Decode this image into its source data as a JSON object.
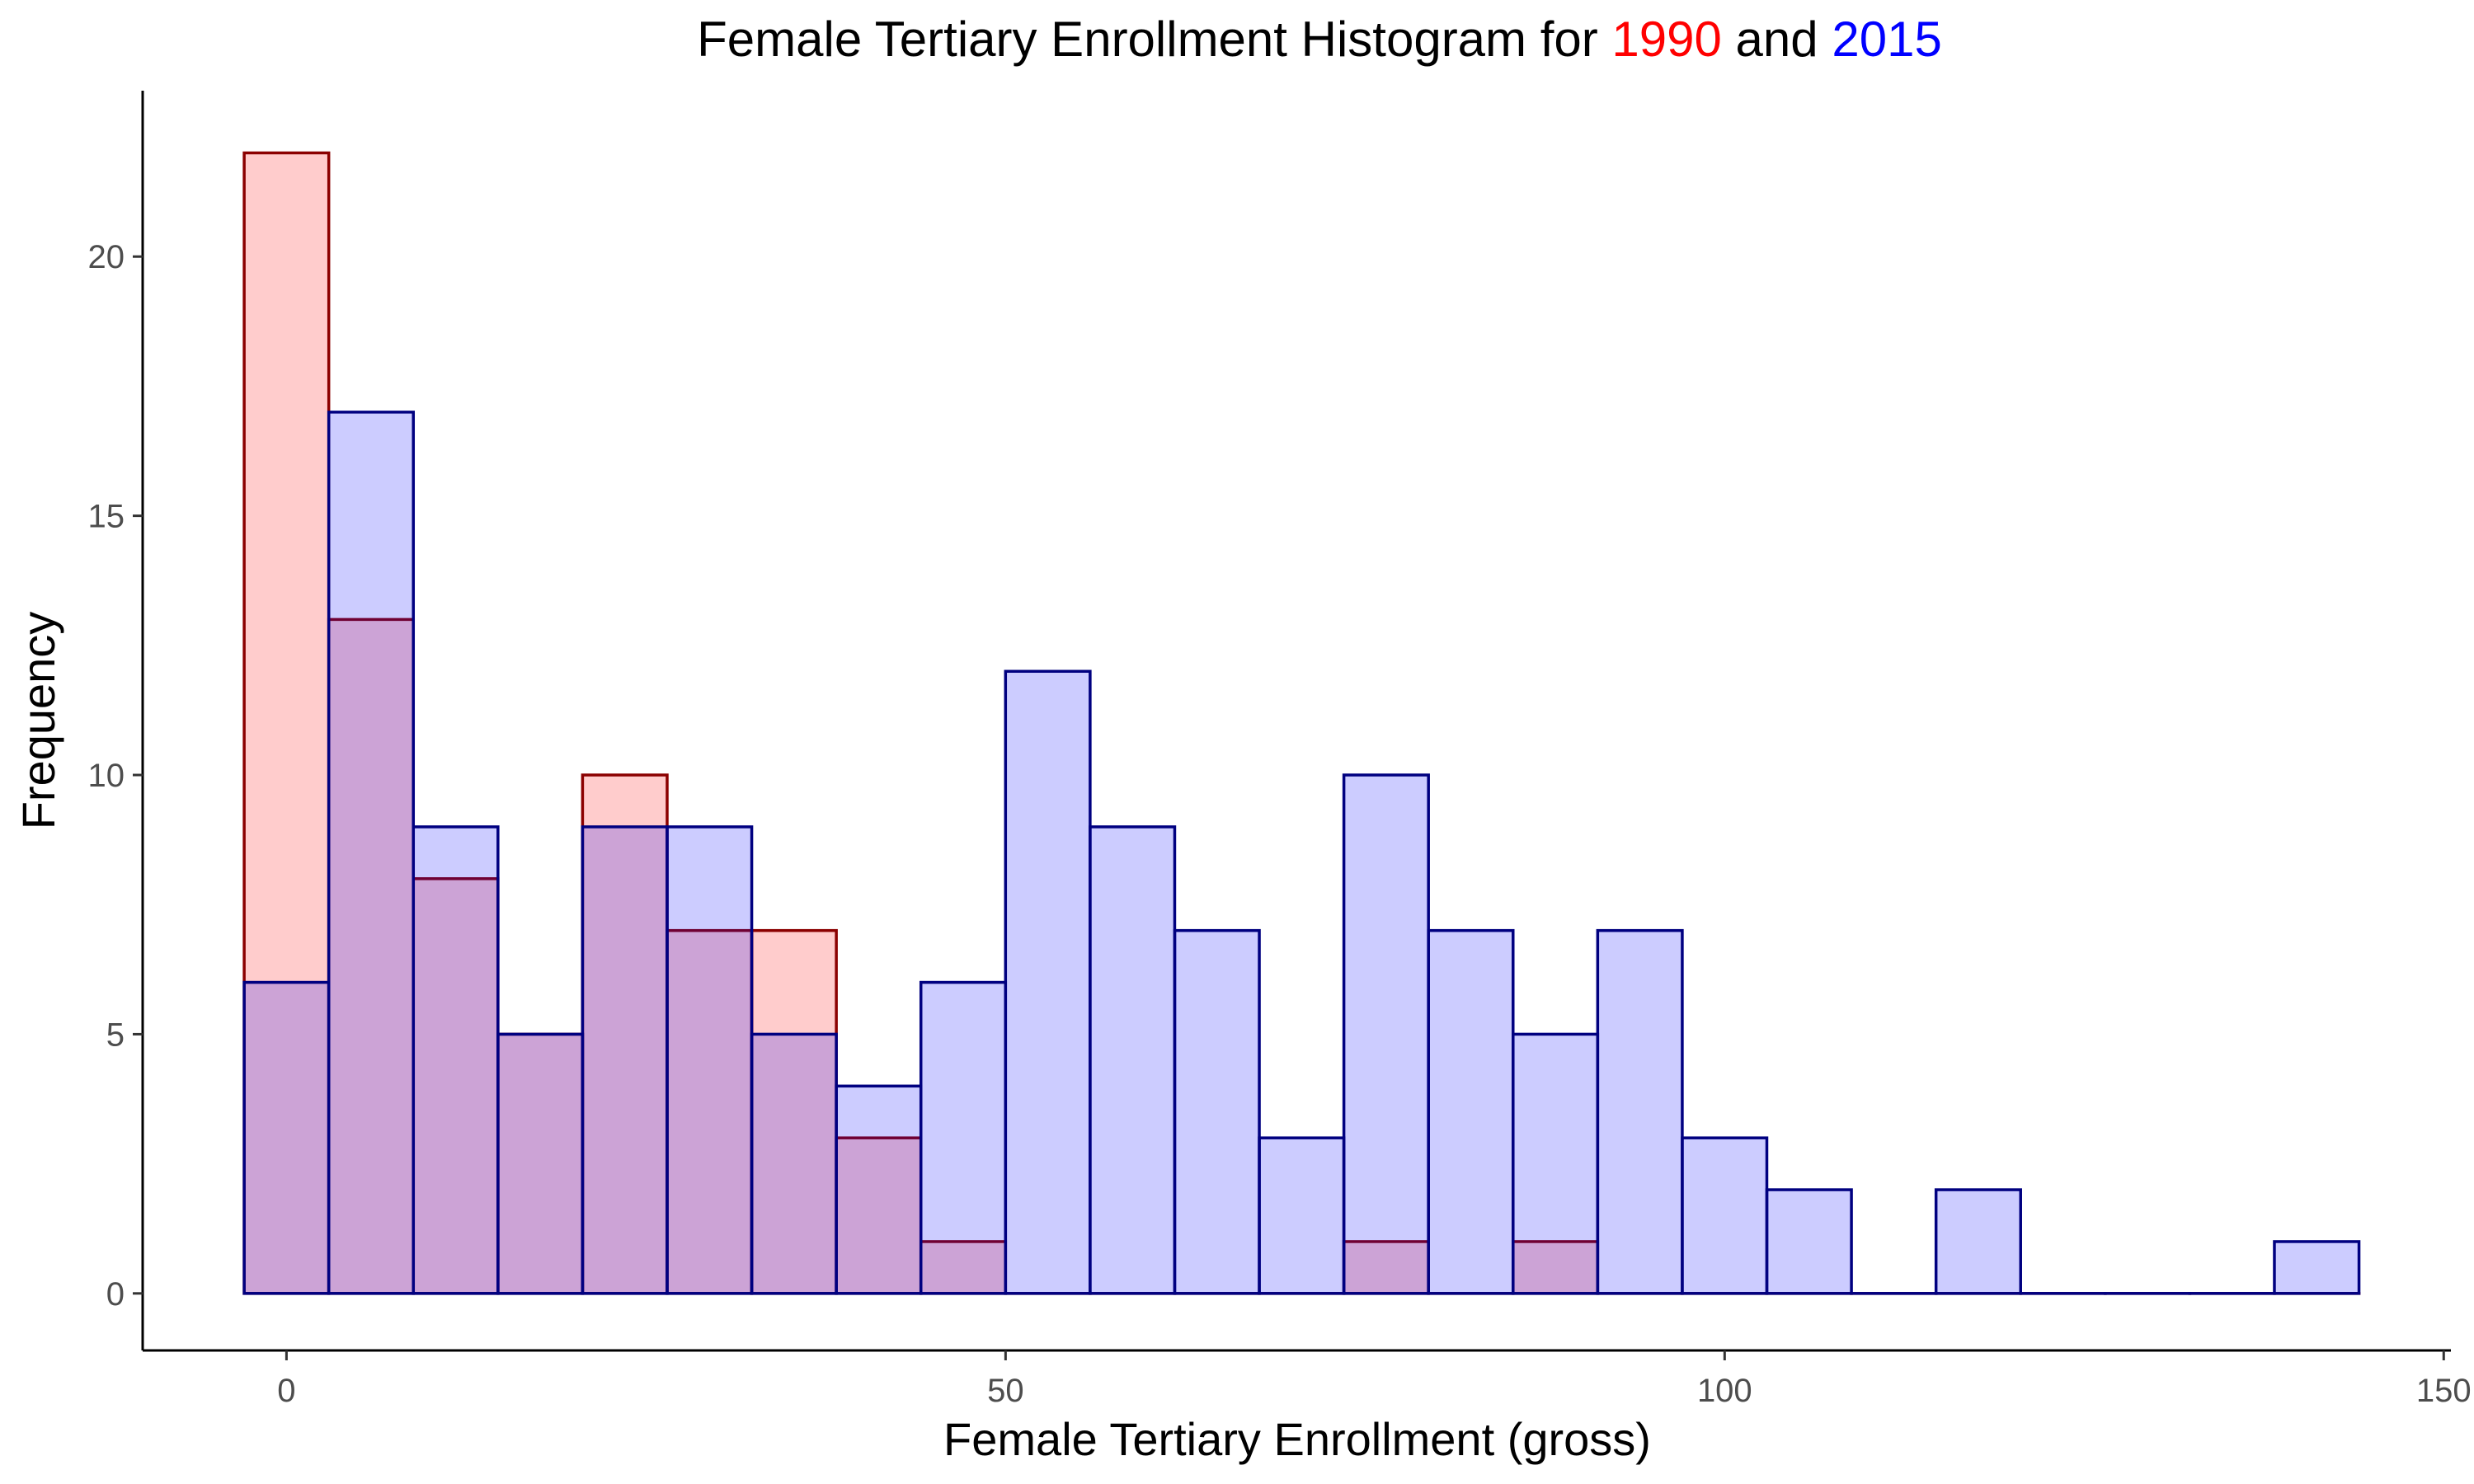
{
  "chart_data": {
    "type": "bar",
    "title": {
      "prefix": "Female Tertiary Enrollment Histogram for ",
      "series1": "1990",
      "middle": " and ",
      "series2": "2015",
      "series1_color": "#ff0000",
      "series2_color": "#0000ff"
    },
    "xlabel": "Female Tertiary Enrollment (gross)",
    "ylabel": "Frequency",
    "xlim": [
      -10,
      150.5
    ],
    "ylim": [
      -1.1,
      23.2
    ],
    "x_ticks": [
      0,
      50,
      100,
      150
    ],
    "y_ticks": [
      0,
      5,
      10,
      15,
      20
    ],
    "bin_width": 5.882,
    "bin_start": -2.941,
    "grid": false,
    "series": [
      {
        "name": "1990",
        "fill": "rgba(255,0,0,0.2)",
        "outline": "#8b0000",
        "values": [
          22,
          13,
          8,
          5,
          10,
          7,
          7,
          3,
          1,
          0,
          0,
          0,
          0,
          1,
          0,
          1,
          0,
          0,
          0,
          0,
          0,
          0,
          0,
          0,
          0
        ]
      },
      {
        "name": "2015",
        "fill": "rgba(0,0,255,0.2)",
        "outline": "#000080",
        "values": [
          6,
          17,
          9,
          5,
          9,
          9,
          5,
          4,
          6,
          12,
          9,
          7,
          3,
          10,
          7,
          5,
          7,
          3,
          2,
          0,
          2,
          0,
          0,
          0,
          1
        ]
      }
    ]
  }
}
